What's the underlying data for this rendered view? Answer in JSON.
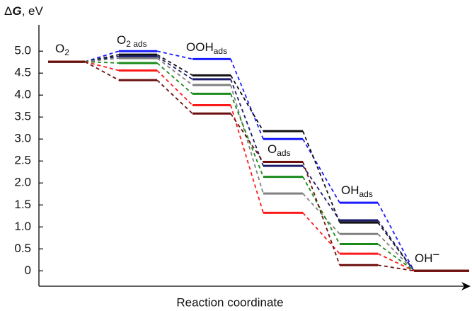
{
  "chart_data": {
    "type": "energy-diagram",
    "y_label": {
      "prefix": "Δ",
      "symbol": "G",
      "unit": ", eV"
    },
    "x_label": "Reaction coordinate",
    "categories": [
      {
        "text": "O",
        "sub": "2"
      },
      {
        "text": "O",
        "sub": "2 ads"
      },
      {
        "text": "OOH",
        "sub": "ads"
      },
      {
        "text": "O",
        "sub": "ads"
      },
      {
        "text": "OH",
        "sub": "ads"
      },
      {
        "text": "OH",
        "sup": "−"
      }
    ],
    "series": [
      {
        "color": "#1a1aff",
        "values": [
          4.76,
          5.0,
          4.82,
          3.0,
          1.55,
          0
        ]
      },
      {
        "color": "#111111",
        "values": [
          4.76,
          4.92,
          4.45,
          3.18,
          1.1,
          0
        ]
      },
      {
        "color": "#1b1b6e",
        "values": [
          4.76,
          4.88,
          4.36,
          2.39,
          1.15,
          0
        ]
      },
      {
        "color": "#808080",
        "values": [
          4.76,
          4.84,
          4.23,
          1.76,
          0.84,
          0
        ]
      },
      {
        "color": "#1a8a1a",
        "values": [
          4.76,
          4.73,
          4.03,
          2.14,
          0.61,
          0
        ]
      },
      {
        "color": "#ff1a1a",
        "values": [
          4.76,
          4.56,
          3.77,
          1.32,
          0.39,
          0
        ]
      },
      {
        "color": "#6b0f0f",
        "values": [
          4.76,
          4.34,
          3.58,
          2.48,
          0.13,
          0
        ]
      }
    ],
    "ylim": [
      -0.35,
      5.6
    ],
    "yticks": [
      0,
      0.5,
      {
        "value": 1,
        "label": "1.0"
      },
      1.5,
      {
        "value": 2,
        "label": "2.0"
      },
      2.5,
      {
        "value": 3,
        "label": "3.0"
      },
      3.5,
      {
        "value": 4,
        "label": "4.0"
      },
      4.5,
      {
        "value": 5,
        "label": "5.0"
      }
    ]
  }
}
